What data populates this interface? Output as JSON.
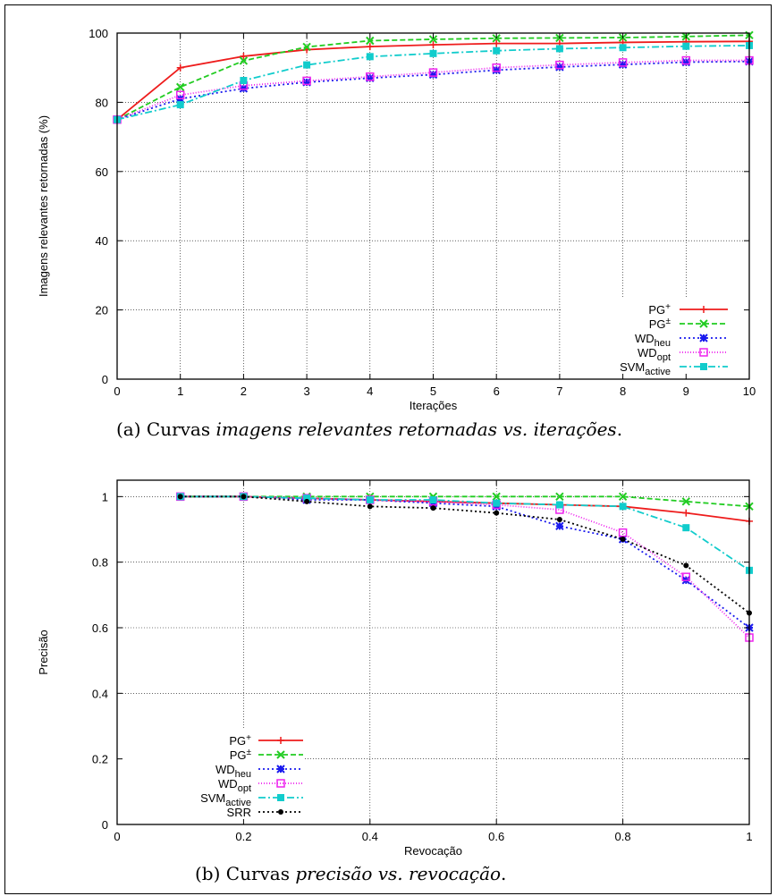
{
  "captions": [
    {
      "prefix": "(a) Curvas ",
      "italic": "imagens relevantes retornadas vs. iterações",
      "suffix": "."
    },
    {
      "prefix": "(b) Curvas ",
      "italic": "precisão vs. revocação",
      "suffix": "."
    }
  ],
  "series_styles": {
    "PG+": {
      "label": "PG",
      "sup": "+",
      "sub": "",
      "color": "#ee1c1c",
      "dash": "",
      "marker": "plus"
    },
    "PG±": {
      "label": "PG",
      "sup": "±",
      "sub": "",
      "color": "#22cc22",
      "dash": "6,3",
      "marker": "x"
    },
    "WDheu": {
      "label": "WD",
      "sup": "",
      "sub": "heu",
      "color": "#1a1aee",
      "dash": "2,3",
      "marker": "star"
    },
    "WDopt": {
      "label": "WD",
      "sup": "",
      "sub": "opt",
      "color": "#ee22ee",
      "dash": "1,2",
      "marker": "square"
    },
    "SVMactive": {
      "label": "SVM",
      "sup": "",
      "sub": "active",
      "color": "#11cccc",
      "dash": "8,3,2,3",
      "marker": "fsquare"
    },
    "SRR": {
      "label": "SRR",
      "sup": "",
      "sub": "",
      "color": "#000000",
      "dash": "2,3",
      "marker": "dot"
    }
  },
  "chart_data": [
    {
      "type": "line",
      "xlabel": "Iterações",
      "ylabel": "Imagens relevantes retornadas (%)",
      "xlim": [
        0,
        10
      ],
      "ylim": [
        0,
        100
      ],
      "xticks": [
        0,
        1,
        2,
        3,
        4,
        5,
        6,
        7,
        8,
        9,
        10
      ],
      "yticks": [
        0,
        20,
        40,
        60,
        80,
        100
      ],
      "legend_position": "bottom-right",
      "grid": true,
      "series": [
        {
          "key": "PG+",
          "x": [
            0,
            1,
            2,
            3,
            4,
            5,
            6,
            7,
            8,
            9,
            10
          ],
          "values": [
            75,
            90,
            93.3,
            95.2,
            96.1,
            96.6,
            97,
            97,
            97.3,
            97.5,
            97.6
          ]
        },
        {
          "key": "PG±",
          "x": [
            0,
            1,
            2,
            3,
            4,
            5,
            6,
            7,
            8,
            9,
            10
          ],
          "values": [
            75,
            84.4,
            92,
            96,
            97.8,
            98.2,
            98.5,
            98.6,
            98.7,
            99,
            99.4
          ]
        },
        {
          "key": "WDheu",
          "x": [
            0,
            1,
            2,
            3,
            4,
            5,
            6,
            7,
            8,
            9,
            10
          ],
          "values": [
            75,
            81,
            84,
            85.8,
            87,
            88,
            89.3,
            90.2,
            90.9,
            91.6,
            91.8
          ]
        },
        {
          "key": "WDopt",
          "x": [
            0,
            1,
            2,
            3,
            4,
            5,
            6,
            7,
            8,
            9,
            10
          ],
          "values": [
            75,
            82.1,
            84.8,
            86.2,
            87.4,
            88.6,
            90,
            90.8,
            91.5,
            92.1,
            92.1
          ]
        },
        {
          "key": "SVMactive",
          "x": [
            0,
            1,
            2,
            3,
            4,
            5,
            6,
            7,
            8,
            9,
            10
          ],
          "values": [
            75,
            79.3,
            86.3,
            90.8,
            93.2,
            94.1,
            94.9,
            95.5,
            95.8,
            96.2,
            96.4
          ]
        }
      ]
    },
    {
      "type": "line",
      "xlabel": "Revocação",
      "ylabel": "Precisão",
      "xlim": [
        0,
        1
      ],
      "ylim": [
        0,
        1.05
      ],
      "xticks": [
        0,
        0.2,
        0.4,
        0.6,
        0.8,
        1
      ],
      "xtick_labels": [
        "0",
        "0.2",
        "0.4",
        "0.6",
        "0.8",
        "1"
      ],
      "yticks": [
        0,
        0.2,
        0.4,
        0.6,
        0.8,
        1
      ],
      "ytick_labels": [
        "0",
        "0.2",
        "0.4",
        "0.6",
        "0.8",
        "1"
      ],
      "legend_position": "bottom-left",
      "grid": true,
      "series": [
        {
          "key": "PG+",
          "x": [
            0.1,
            0.2,
            0.3,
            0.4,
            0.5,
            0.6,
            0.7,
            0.8,
            0.9,
            1
          ],
          "values": [
            1,
            1,
            0.995,
            0.99,
            0.985,
            0.98,
            0.975,
            0.97,
            0.95,
            0.925
          ]
        },
        {
          "key": "PG±",
          "x": [
            0.1,
            0.2,
            0.3,
            0.4,
            0.5,
            0.6,
            0.7,
            0.8,
            0.9,
            1
          ],
          "values": [
            1,
            1,
            1,
            1,
            1,
            1,
            1,
            1,
            0.985,
            0.97
          ]
        },
        {
          "key": "WDheu",
          "x": [
            0.1,
            0.2,
            0.3,
            0.4,
            0.5,
            0.6,
            0.7,
            0.8,
            0.9,
            1
          ],
          "values": [
            1,
            1,
            0.99,
            0.99,
            0.98,
            0.97,
            0.91,
            0.87,
            0.745,
            0.6
          ]
        },
        {
          "key": "WDopt",
          "x": [
            0.1,
            0.2,
            0.3,
            0.4,
            0.5,
            0.6,
            0.7,
            0.8,
            0.9,
            1
          ],
          "values": [
            1,
            1,
            0.995,
            0.99,
            0.985,
            0.975,
            0.96,
            0.89,
            0.755,
            0.57
          ]
        },
        {
          "key": "SVMactive",
          "x": [
            0.1,
            0.2,
            0.3,
            0.4,
            0.5,
            0.6,
            0.7,
            0.8,
            0.9,
            1
          ],
          "values": [
            1,
            1,
            0.995,
            0.99,
            0.99,
            0.98,
            0.975,
            0.97,
            0.905,
            0.775
          ]
        },
        {
          "key": "SRR",
          "x": [
            0.1,
            0.2,
            0.3,
            0.4,
            0.5,
            0.6,
            0.7,
            0.8,
            0.9,
            1
          ],
          "values": [
            1,
            1,
            0.985,
            0.97,
            0.965,
            0.95,
            0.93,
            0.87,
            0.79,
            0.645
          ]
        }
      ]
    }
  ]
}
